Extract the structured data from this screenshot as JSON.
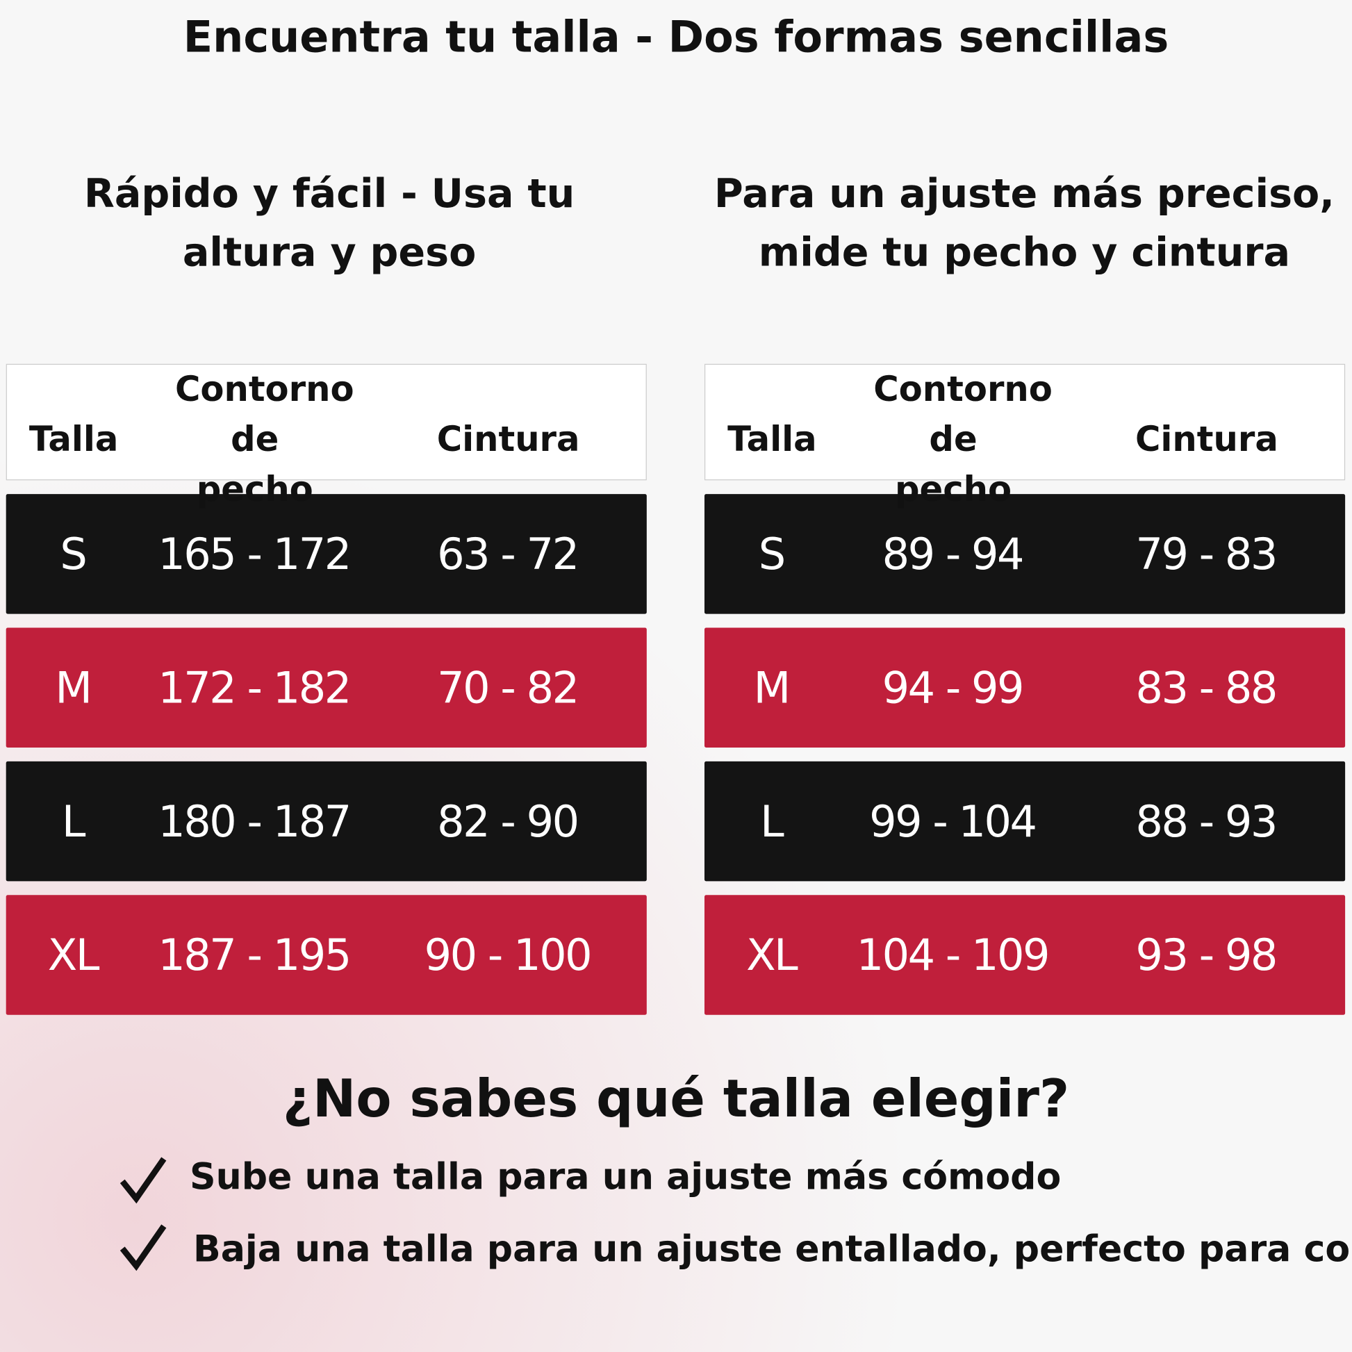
{
  "title": "Encuentra tu talla - Dos formas sencillas",
  "left": {
    "heading": "Rápido y fácil - Usa tu altura y peso",
    "table": {
      "header": [
        "Talla",
        "Contorno de pecho",
        "Cintura"
      ],
      "rows": [
        [
          "S",
          "165 - 172",
          "63 - 72"
        ],
        [
          "M",
          "172 - 182",
          "70 - 82"
        ],
        [
          "L",
          "180 - 187",
          "82 - 90"
        ],
        [
          "XL",
          "187 - 195",
          "90 - 100"
        ]
      ]
    }
  },
  "right": {
    "heading": "Para un ajuste más preciso, mide tu pecho y cintura",
    "table": {
      "header": [
        "Talla",
        "Contorno de pecho",
        "Cintura"
      ],
      "rows": [
        [
          "S",
          "89 - 94",
          "79 - 83"
        ],
        [
          "M",
          "94 - 99",
          "83 - 88"
        ],
        [
          "L",
          "99 - 104",
          "88 - 93"
        ],
        [
          "XL",
          "104 - 109",
          "93 - 98"
        ]
      ]
    }
  },
  "footer": {
    "question": "¿No sabes qué talla elegir?",
    "tips": [
      "Sube una talla para un ajuste más cómodo",
      "Baja una talla para un ajuste entallado, perfecto para correr"
    ]
  }
}
